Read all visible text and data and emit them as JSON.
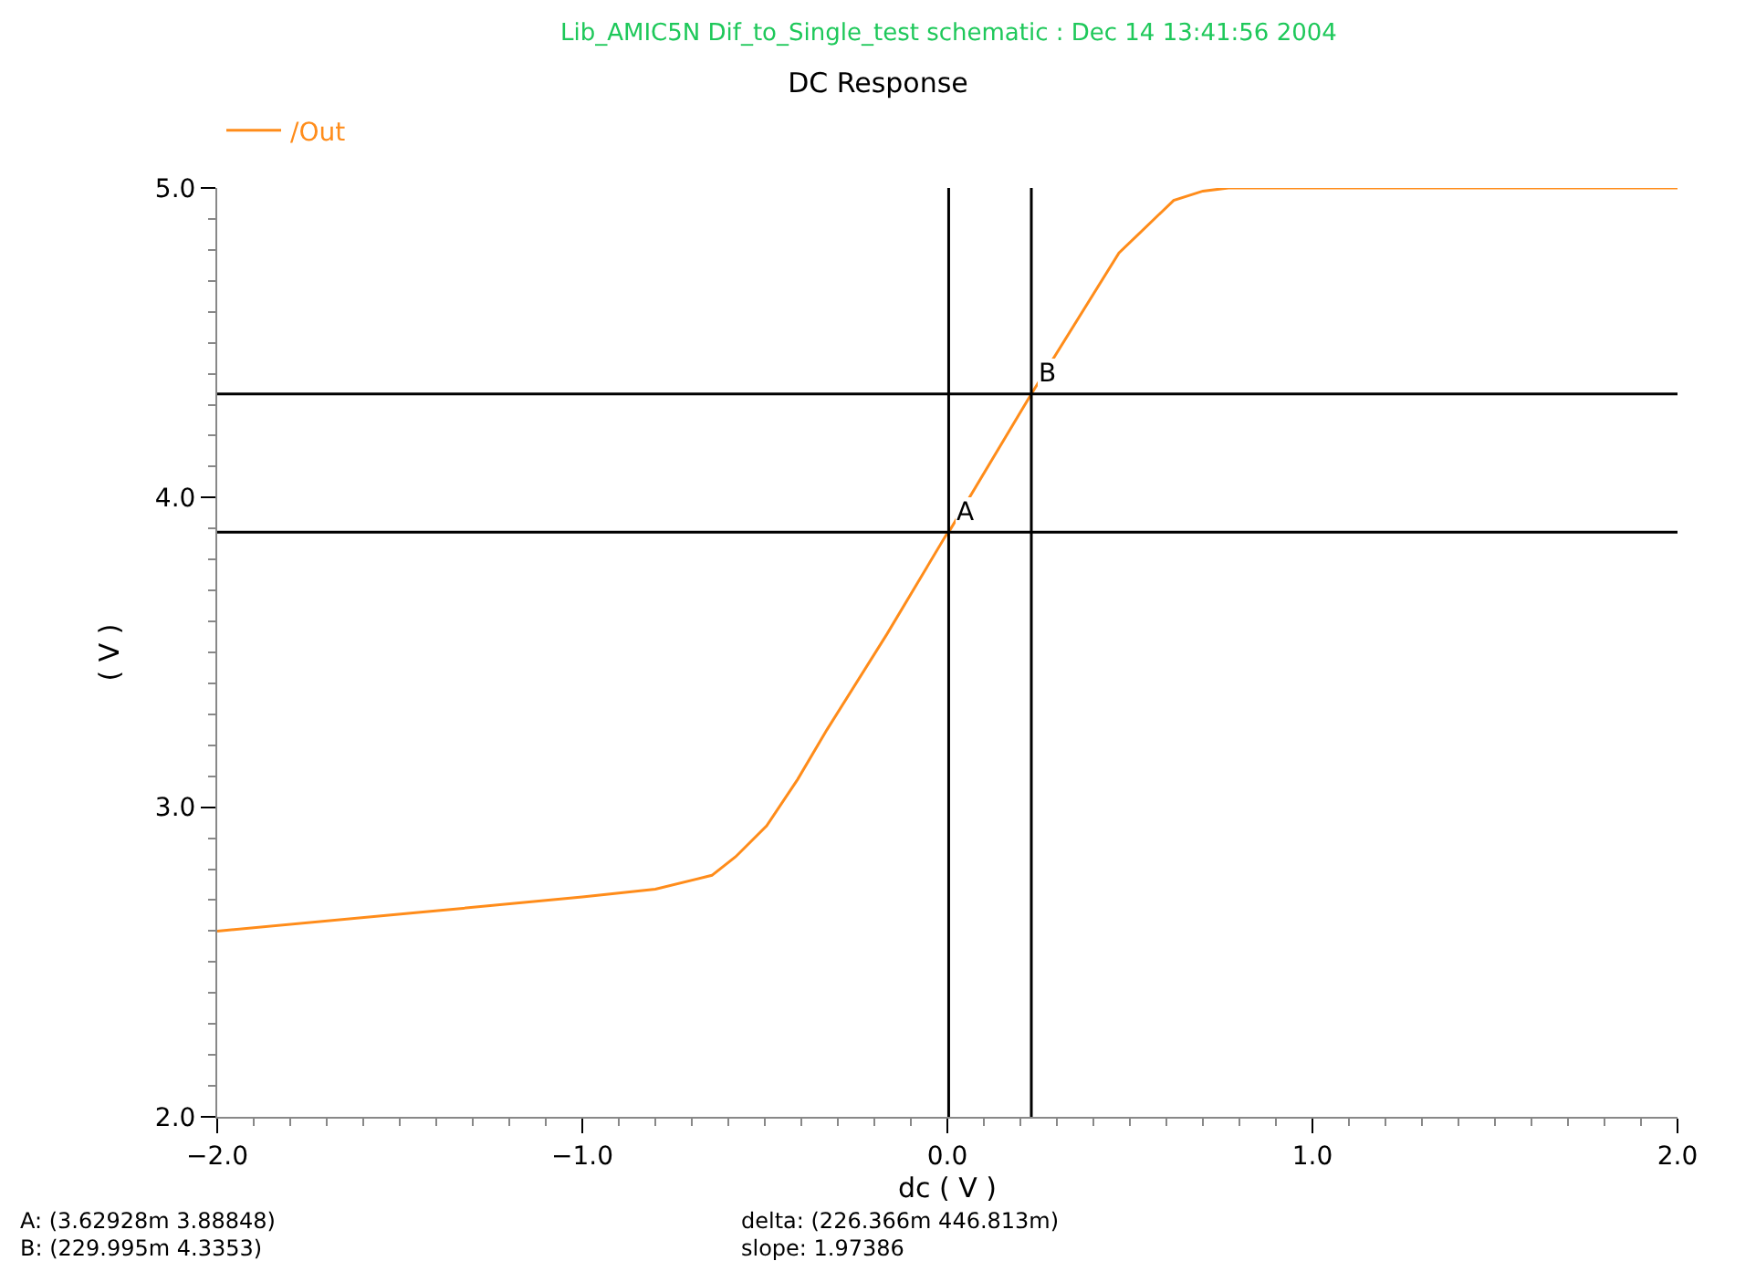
{
  "chart_data": {
    "type": "line",
    "title": "DC Response",
    "subtitle": "Lib_AMIC5N Dif_to_Single_test schematic : Dec 14 13:41:56 2004",
    "xlabel": "dc ( V )",
    "ylabel": "( V )",
    "series": [
      {
        "name": "/Out",
        "color": "#ff8c1a",
        "x": [
          -2.0,
          -1.45,
          -1.0,
          -0.8,
          -0.645,
          -0.58,
          -0.495,
          -0.41,
          -0.33,
          -0.165,
          -0.003,
          0.0036,
          0.23,
          0.47,
          0.62,
          0.7,
          0.77,
          1.115,
          1.75,
          2.0
        ],
        "values": [
          2.6,
          2.66,
          2.71,
          2.735,
          2.78,
          2.84,
          2.94,
          3.09,
          3.25,
          3.56,
          3.88,
          3.888,
          4.335,
          4.79,
          4.96,
          4.99,
          5.0,
          5.0,
          5.0,
          5.0
        ]
      }
    ],
    "xlim": [
      -2.0,
      2.0
    ],
    "ylim": [
      2.0,
      5.0
    ],
    "xticks": [
      {
        "value": -2.0,
        "label": "−2.0"
      },
      {
        "value": -1.0,
        "label": "−1.0"
      },
      {
        "value": 0.0,
        "label": "0.0"
      },
      {
        "value": 1.0,
        "label": "1.0"
      },
      {
        "value": 2.0,
        "label": "2.0"
      }
    ],
    "yticks": [
      {
        "value": 2.0,
        "label": "2.0"
      },
      {
        "value": 3.0,
        "label": "3.0"
      },
      {
        "value": 4.0,
        "label": "4.0"
      },
      {
        "value": 5.0,
        "label": "5.0"
      }
    ],
    "ref_lines": [
      {
        "axis": "x",
        "value": 0.0036,
        "label": "A",
        "color": "#000000"
      },
      {
        "axis": "x",
        "value": 0.23,
        "label": "B",
        "color": "#000000"
      },
      {
        "axis": "y",
        "value": 3.888,
        "color": "#000000"
      },
      {
        "axis": "y",
        "value": 4.335,
        "color": "#000000"
      }
    ],
    "annotations": [
      "A: (3.62928m 3.88848)",
      "B: (229.995m 4.3353)",
      "delta: (226.366m 446.813m)",
      "slope: 1.97386"
    ],
    "legend": "top left"
  }
}
